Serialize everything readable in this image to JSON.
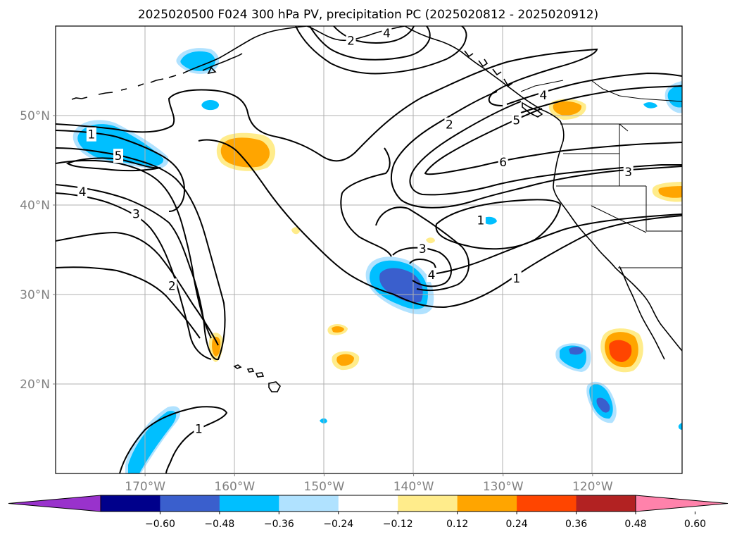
{
  "title": "2025020500 F024 300 hPa PV, precipitation PC (2025020812 - 2025020912)",
  "map": {
    "lon_range": [
      -180,
      -110
    ],
    "lat_range": [
      10,
      60
    ],
    "lon_ticks": [
      {
        "value": -170,
        "label": "170°W"
      },
      {
        "value": -160,
        "label": "160°W"
      },
      {
        "value": -150,
        "label": "150°W"
      },
      {
        "value": -140,
        "label": "140°W"
      },
      {
        "value": -130,
        "label": "130°W"
      },
      {
        "value": -120,
        "label": "120°W"
      }
    ],
    "lat_ticks": [
      {
        "value": 20,
        "label": "20°N"
      },
      {
        "value": 30,
        "label": "30°N"
      },
      {
        "value": 40,
        "label": "40°N"
      },
      {
        "value": 50,
        "label": "50°N"
      }
    ],
    "grid": true,
    "pv_contour_labels": [
      {
        "text": "1",
        "lon": -176,
        "lat": 47.9
      },
      {
        "text": "5",
        "lon": -173,
        "lat": 45.5
      },
      {
        "text": "4",
        "lon": -177,
        "lat": 41.5
      },
      {
        "text": "3",
        "lon": -171,
        "lat": 39
      },
      {
        "text": "2",
        "lon": -167,
        "lat": 31
      },
      {
        "text": "1",
        "lon": -164,
        "lat": 15
      },
      {
        "text": "2",
        "lon": -147,
        "lat": 58.4
      },
      {
        "text": "4",
        "lon": -143,
        "lat": 59.2
      },
      {
        "text": "2",
        "lon": -136,
        "lat": 49
      },
      {
        "text": "5",
        "lon": -128.5,
        "lat": 49.5
      },
      {
        "text": "4",
        "lon": -125.5,
        "lat": 52.3
      },
      {
        "text": "6",
        "lon": -130,
        "lat": 44.8
      },
      {
        "text": "3",
        "lon": -116,
        "lat": 43.7
      },
      {
        "text": "1",
        "lon": -132.5,
        "lat": 38.3
      },
      {
        "text": "3",
        "lon": -139,
        "lat": 35.1
      },
      {
        "text": "4",
        "lon": -138,
        "lat": 32.2
      },
      {
        "text": "1",
        "lon": -128.5,
        "lat": 31.8
      }
    ]
  },
  "colorbar": {
    "levels": [
      "-0.60",
      "-0.48",
      "-0.36",
      "-0.24",
      "-0.12",
      "0.12",
      "0.24",
      "0.36",
      "0.48",
      "0.60"
    ],
    "colors": [
      "#9932cc",
      "#00008b",
      "#3a5fcd",
      "#00bfff",
      "#b0e2ff",
      "#ffffff",
      "#ffec8b",
      "#ffa500",
      "#ff4500",
      "#b22222",
      "#ff82ab"
    ]
  }
}
